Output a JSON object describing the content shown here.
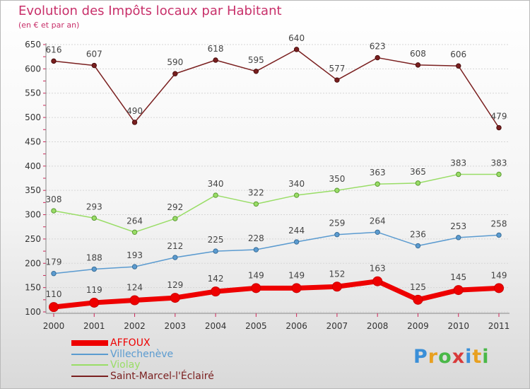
{
  "chart_data": {
    "type": "line",
    "title": "Evolution des Impôts locaux par Habitant",
    "subtitle": "(en € et par an)",
    "xlabel": "",
    "ylabel": "",
    "categories": [
      "2000",
      "2001",
      "2002",
      "2003",
      "2004",
      "2005",
      "2006",
      "2007",
      "2008",
      "2009",
      "2010",
      "2011"
    ],
    "yticks": [
      100,
      150,
      200,
      250,
      300,
      350,
      400,
      450,
      500,
      550,
      600,
      650
    ],
    "ylim": [
      100,
      650
    ],
    "grid": "horizontal",
    "legend_position": "bottom-left",
    "series": [
      {
        "name": "AFFOUX",
        "color": "#ee0000",
        "values": [
          110,
          119,
          124,
          129,
          142,
          149,
          149,
          152,
          163,
          125,
          145,
          149
        ]
      },
      {
        "name": "Villechenève",
        "color": "#5b9bd0",
        "values": [
          179,
          188,
          193,
          212,
          225,
          228,
          244,
          259,
          264,
          236,
          253,
          258
        ]
      },
      {
        "name": "Violay",
        "color": "#99dd66",
        "values": [
          308,
          293,
          264,
          292,
          340,
          322,
          340,
          350,
          363,
          365,
          383,
          383
        ]
      },
      {
        "name": "Saint-Marcel-l'Éclairé",
        "color": "#7a1f1f",
        "values": [
          616,
          607,
          490,
          590,
          618,
          595,
          640,
          577,
          623,
          608,
          606,
          479
        ]
      }
    ]
  },
  "logo": {
    "text": "Proxiti"
  }
}
